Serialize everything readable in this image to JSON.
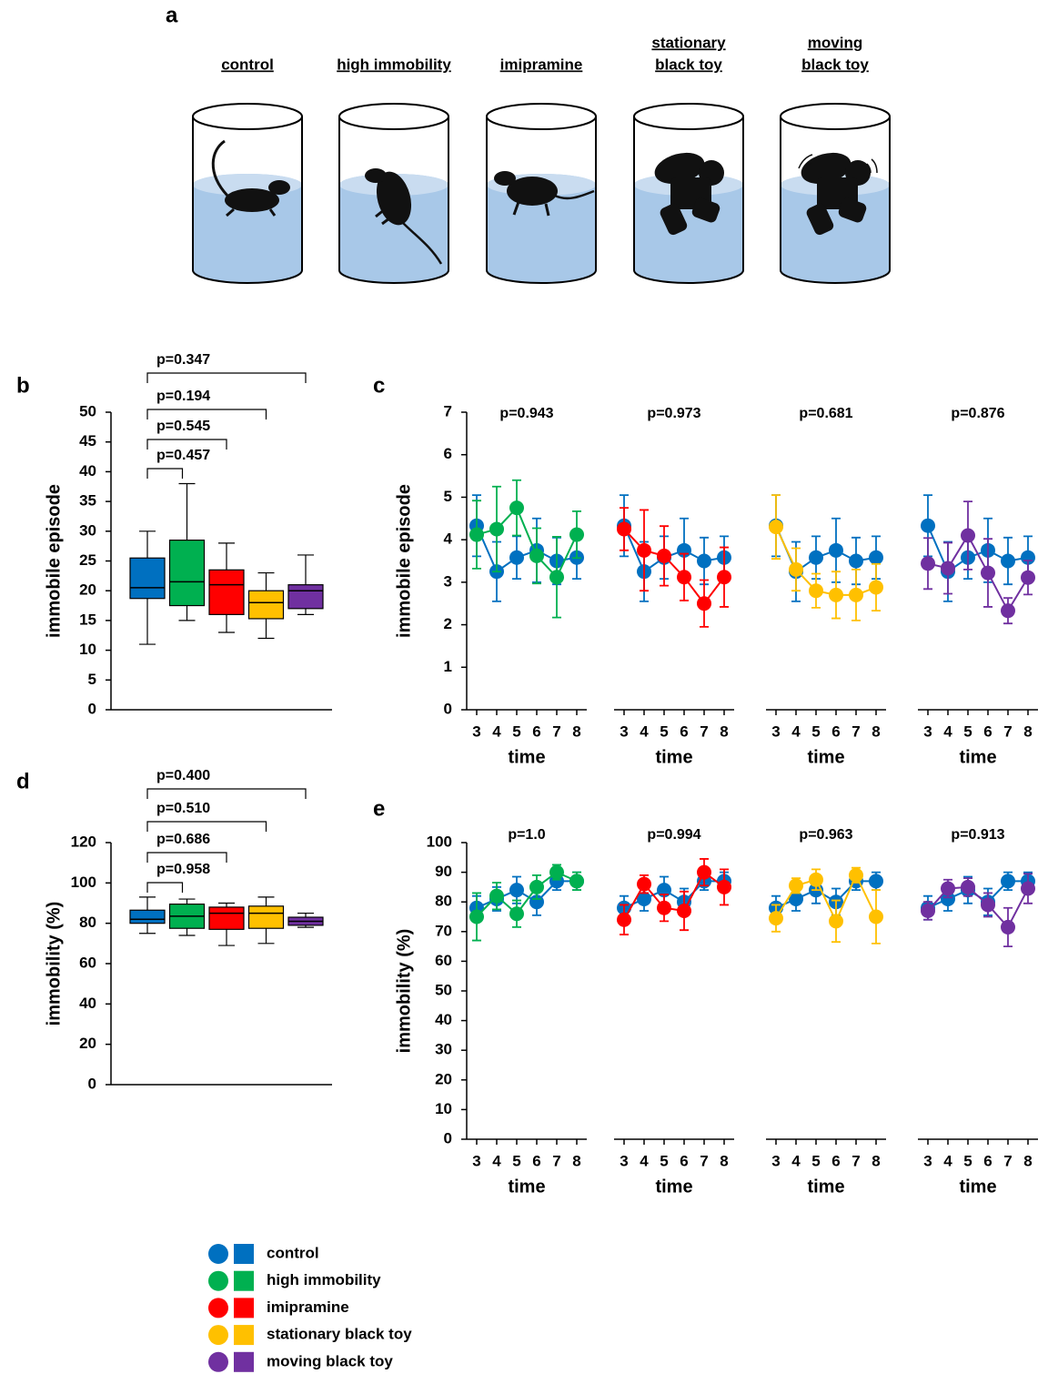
{
  "panel_labels": [
    "a",
    "b",
    "c",
    "d",
    "e"
  ],
  "illustration": {
    "labels": [
      [
        "control"
      ],
      [
        "high immobility"
      ],
      [
        "imipramine"
      ],
      [
        "stationary",
        "black toy"
      ],
      [
        "moving",
        "black toy"
      ]
    ]
  },
  "legend": {
    "items": [
      {
        "name": "control",
        "color": "#0070c0"
      },
      {
        "name": "high immobility",
        "color": "#00b050"
      },
      {
        "name": "imipramine",
        "color": "#ff0000"
      },
      {
        "name": "stationary black toy",
        "color": "#ffc000"
      },
      {
        "name": "moving black toy",
        "color": "#7030a0"
      }
    ]
  },
  "chart_data": [
    {
      "type": "box",
      "ylabel": "immobile episode",
      "ylim": [
        0,
        50
      ],
      "yticks": [
        0,
        5,
        10,
        15,
        20,
        25,
        30,
        35,
        40,
        45,
        50
      ],
      "boxes": [
        {
          "color": "#0070c0",
          "whislo": 11,
          "q1": 18.7,
          "med": 20.5,
          "q3": 25.5,
          "whishi": 30
        },
        {
          "color": "#00b050",
          "whislo": 15,
          "q1": 17.5,
          "med": 21.5,
          "q3": 28.5,
          "whishi": 38
        },
        {
          "color": "#ff0000",
          "whislo": 13,
          "q1": 16,
          "med": 21,
          "q3": 23.5,
          "whishi": 28
        },
        {
          "color": "#ffc000",
          "whislo": 12,
          "q1": 15.3,
          "med": 18,
          "q3": 20,
          "whishi": 23
        },
        {
          "color": "#7030a0",
          "whislo": 16,
          "q1": 17,
          "med": 20,
          "q3": 21,
          "whishi": 26
        }
      ],
      "annotations": [
        "p=0.457",
        "p=0.545",
        "p=0.194",
        "p=0.347"
      ]
    },
    {
      "type": "line",
      "annotation": "p=0.943",
      "xlabel": "time",
      "ylabel": "immobile episode",
      "x": [
        3,
        4,
        5,
        6,
        7,
        8
      ],
      "xlim": [
        2.5,
        8.5
      ],
      "xticks": [
        3,
        4,
        5,
        6,
        7,
        8
      ],
      "ylim": [
        0,
        7
      ],
      "yticks": [
        0,
        1,
        2,
        3,
        4,
        5,
        6,
        7
      ],
      "series": [
        {
          "color": "#0070c0",
          "values": [
            4.33,
            3.25,
            3.58,
            3.75,
            3.5,
            3.58
          ],
          "errors": [
            0.72,
            0.7,
            0.5,
            0.75,
            0.55,
            0.5
          ]
        },
        {
          "color": "#00b050",
          "values": [
            4.12,
            4.25,
            4.75,
            3.62,
            3.12,
            4.12
          ],
          "errors": [
            0.8,
            1.0,
            0.65,
            0.65,
            0.95,
            0.55
          ]
        }
      ]
    },
    {
      "type": "line",
      "annotation": "p=0.973",
      "xlabel": "time",
      "x": [
        3,
        4,
        5,
        6,
        7,
        8
      ],
      "xlim": [
        2.5,
        8.5
      ],
      "xticks": [
        3,
        4,
        5,
        6,
        7,
        8
      ],
      "ylim": [
        0,
        7
      ],
      "series": [
        {
          "color": "#0070c0",
          "values": [
            4.33,
            3.25,
            3.58,
            3.75,
            3.5,
            3.58
          ],
          "errors": [
            0.72,
            0.7,
            0.5,
            0.75,
            0.55,
            0.5
          ]
        },
        {
          "color": "#ff0000",
          "values": [
            4.25,
            3.75,
            3.62,
            3.12,
            2.5,
            3.12
          ],
          "errors": [
            0.5,
            0.95,
            0.7,
            0.55,
            0.55,
            0.7
          ]
        }
      ]
    },
    {
      "type": "line",
      "annotation": "p=0.681",
      "xlabel": "time",
      "x": [
        3,
        4,
        5,
        6,
        7,
        8
      ],
      "xlim": [
        2.5,
        8.5
      ],
      "xticks": [
        3,
        4,
        5,
        6,
        7,
        8
      ],
      "ylim": [
        0,
        7
      ],
      "series": [
        {
          "color": "#0070c0",
          "values": [
            4.33,
            3.25,
            3.58,
            3.75,
            3.5,
            3.58
          ],
          "errors": [
            0.72,
            0.7,
            0.5,
            0.75,
            0.55,
            0.5
          ]
        },
        {
          "color": "#ffc000",
          "values": [
            4.3,
            3.3,
            2.8,
            2.7,
            2.7,
            2.88
          ],
          "errors": [
            0.75,
            0.5,
            0.4,
            0.55,
            0.6,
            0.55
          ]
        }
      ]
    },
    {
      "type": "line",
      "annotation": "p=0.876",
      "xlabel": "time",
      "x": [
        3,
        4,
        5,
        6,
        7,
        8
      ],
      "xlim": [
        2.5,
        8.5
      ],
      "xticks": [
        3,
        4,
        5,
        6,
        7,
        8
      ],
      "ylim": [
        0,
        7
      ],
      "series": [
        {
          "color": "#0070c0",
          "values": [
            4.33,
            3.25,
            3.58,
            3.75,
            3.5,
            3.58
          ],
          "errors": [
            0.72,
            0.7,
            0.5,
            0.75,
            0.55,
            0.5
          ]
        },
        {
          "color": "#7030a0",
          "values": [
            3.44,
            3.33,
            4.1,
            3.22,
            2.33,
            3.11
          ],
          "errors": [
            0.6,
            0.6,
            0.8,
            0.8,
            0.3,
            0.4
          ]
        }
      ]
    },
    {
      "type": "box",
      "ylabel": "immobility (%)",
      "ylim": [
        0,
        120
      ],
      "yticks": [
        0,
        20,
        40,
        60,
        80,
        100,
        120
      ],
      "boxes": [
        {
          "color": "#0070c0",
          "whislo": 75,
          "q1": 80,
          "med": 82,
          "q3": 86.5,
          "whishi": 93
        },
        {
          "color": "#00b050",
          "whislo": 74,
          "q1": 77.5,
          "med": 83.5,
          "q3": 89.5,
          "whishi": 92
        },
        {
          "color": "#ff0000",
          "whislo": 69,
          "q1": 77,
          "med": 85,
          "q3": 88,
          "whishi": 90
        },
        {
          "color": "#ffc000",
          "whislo": 70,
          "q1": 77.5,
          "med": 85,
          "q3": 88.5,
          "whishi": 93
        },
        {
          "color": "#7030a0",
          "whislo": 78,
          "q1": 79,
          "med": 81,
          "q3": 83,
          "whishi": 85
        }
      ],
      "annotations": [
        "p=0.958",
        "p=0.686",
        "p=0.510",
        "p=0.400"
      ]
    },
    {
      "type": "line",
      "annotation": "p=1.0",
      "xlabel": "time",
      "ylabel": "immobility (%)",
      "x": [
        3,
        4,
        5,
        6,
        7,
        8
      ],
      "xlim": [
        2.5,
        8.5
      ],
      "xticks": [
        3,
        4,
        5,
        6,
        7,
        8
      ],
      "ylim": [
        0,
        100
      ],
      "yticks": [
        0,
        10,
        20,
        30,
        40,
        50,
        60,
        70,
        80,
        90,
        100
      ],
      "series": [
        {
          "color": "#0070c0",
          "values": [
            78,
            81,
            84,
            80,
            87,
            87
          ],
          "errors": [
            4,
            4,
            4.5,
            4.5,
            3,
            3
          ]
        },
        {
          "color": "#00b050",
          "values": [
            75,
            82,
            76,
            85,
            90,
            87
          ],
          "errors": [
            8,
            4.5,
            4.5,
            4,
            2.5,
            3
          ]
        }
      ]
    },
    {
      "type": "line",
      "annotation": "p=0.994",
      "xlabel": "time",
      "x": [
        3,
        4,
        5,
        6,
        7,
        8
      ],
      "xlim": [
        2.5,
        8.5
      ],
      "xticks": [
        3,
        4,
        5,
        6,
        7,
        8
      ],
      "ylim": [
        0,
        100
      ],
      "series": [
        {
          "color": "#0070c0",
          "values": [
            78,
            81,
            84,
            80,
            87,
            87
          ],
          "errors": [
            4,
            4,
            4.5,
            4.5,
            3,
            3
          ]
        },
        {
          "color": "#ff0000",
          "values": [
            74,
            86,
            78,
            77,
            90,
            85
          ],
          "errors": [
            5,
            3,
            4.5,
            6.5,
            4.5,
            6
          ]
        }
      ]
    },
    {
      "type": "line",
      "annotation": "p=0.963",
      "xlabel": "time",
      "x": [
        3,
        4,
        5,
        6,
        7,
        8
      ],
      "xlim": [
        2.5,
        8.5
      ],
      "xticks": [
        3,
        4,
        5,
        6,
        7,
        8
      ],
      "ylim": [
        0,
        100
      ],
      "series": [
        {
          "color": "#0070c0",
          "values": [
            78,
            81,
            84,
            80,
            87,
            87
          ],
          "errors": [
            4,
            4,
            4.5,
            4.5,
            3,
            3
          ]
        },
        {
          "color": "#ffc000",
          "values": [
            74.5,
            85.5,
            87.5,
            73.5,
            89,
            75
          ],
          "errors": [
            4.5,
            2.5,
            3.5,
            7,
            2.5,
            9
          ]
        }
      ]
    },
    {
      "type": "line",
      "annotation": "p=0.913",
      "xlabel": "time",
      "x": [
        3,
        4,
        5,
        6,
        7,
        8
      ],
      "xlim": [
        2.5,
        8.5
      ],
      "xticks": [
        3,
        4,
        5,
        6,
        7,
        8
      ],
      "ylim": [
        0,
        100
      ],
      "series": [
        {
          "color": "#0070c0",
          "values": [
            78,
            81,
            84,
            80,
            87,
            87
          ],
          "errors": [
            4,
            4,
            4.5,
            4.5,
            3,
            3
          ]
        },
        {
          "color": "#7030a0",
          "values": [
            77,
            84.5,
            85,
            79,
            71.5,
            84.5
          ],
          "errors": [
            3,
            3,
            3,
            4,
            6.5,
            5
          ]
        }
      ]
    }
  ]
}
